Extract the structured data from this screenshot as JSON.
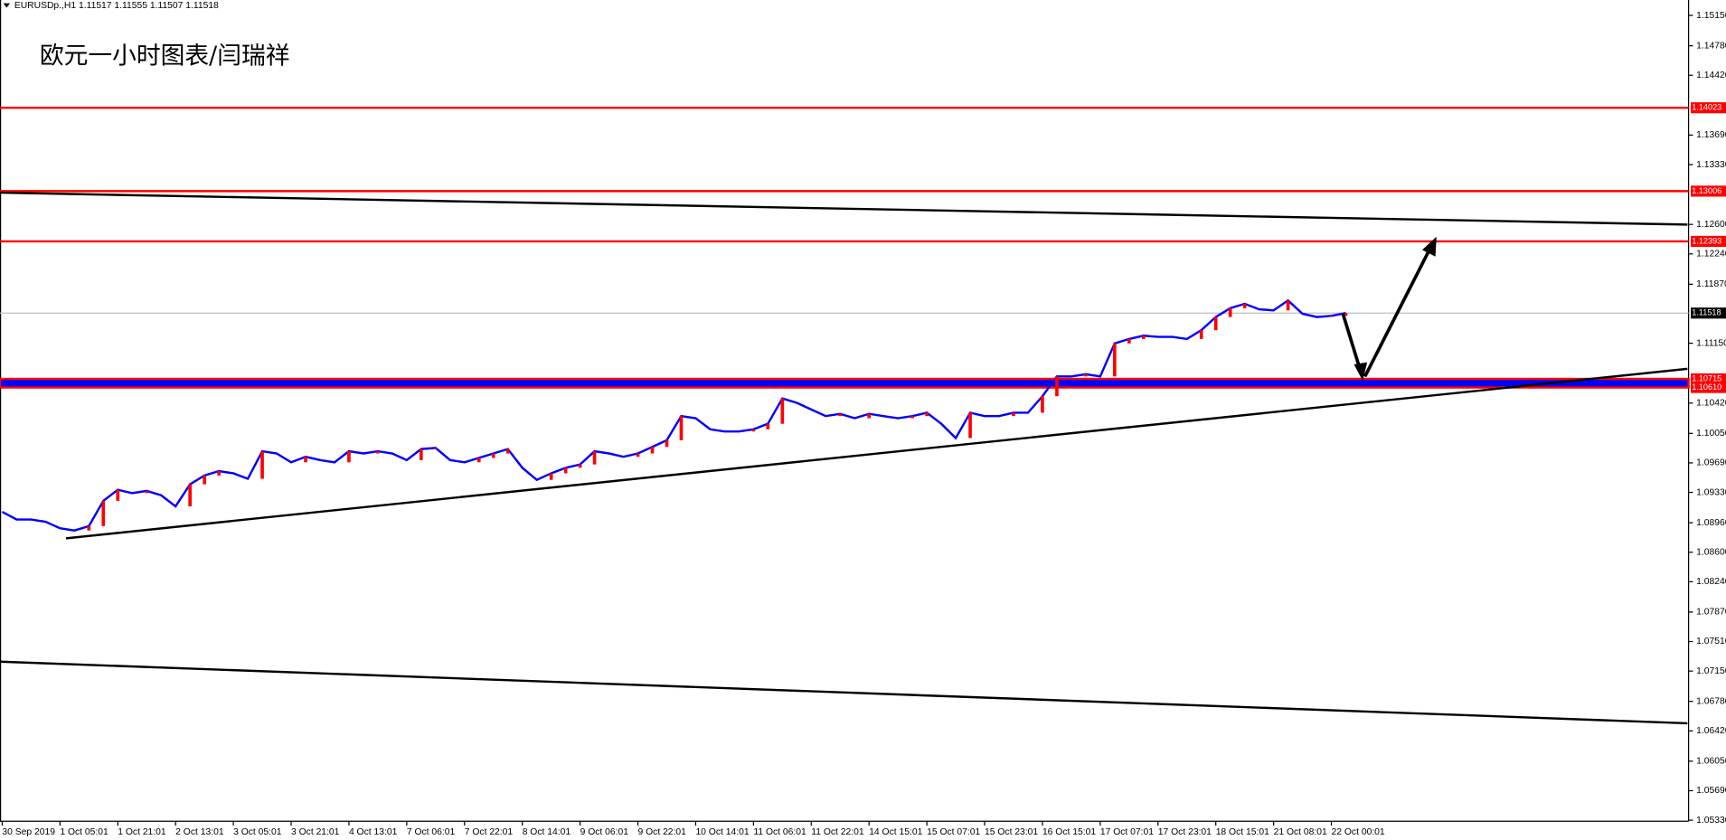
{
  "header": "EURUSDp.,H1  1.11517 1.11555 1.11507 1.11518",
  "chart_data": {
    "type": "line",
    "title": "欧元一小时图表/闫瑞祥",
    "categories": [
      "30 Sep 2019",
      null,
      null,
      null,
      "1 Oct 05:01",
      null,
      null,
      null,
      "1 Oct 21:01",
      null,
      null,
      null,
      "2 Oct 13:01",
      null,
      null,
      null,
      "3 Oct 05:01",
      null,
      null,
      null,
      "3 Oct 21:01",
      null,
      null,
      null,
      "4 Oct 13:01",
      null,
      null,
      null,
      "7 Oct 06:01",
      null,
      null,
      null,
      "7 Oct 22:01",
      null,
      null,
      null,
      "8 Oct 14:01",
      null,
      null,
      null,
      "9 Oct 06:01",
      null,
      null,
      null,
      "9 Oct 22:01",
      null,
      null,
      null,
      "10 Oct 14:01",
      null,
      null,
      null,
      "11 Oct 06:01",
      null,
      null,
      null,
      "11 Oct 22:01",
      null,
      null,
      null,
      "14 Oct 15:01",
      null,
      null,
      null,
      "15 Oct 07:01",
      null,
      null,
      null,
      "15 Oct 23:01",
      null,
      null,
      null,
      "16 Oct 15:01",
      null,
      null,
      null,
      "17 Oct 07:01",
      null,
      null,
      null,
      "17 Oct 23:01",
      null,
      null,
      null,
      "18 Oct 15:01",
      null,
      null,
      null,
      "21 Oct 08:01",
      null,
      null,
      null,
      "22 Oct 00:01",
      null
    ],
    "values": [
      1.09093,
      1.08999,
      1.08999,
      1.08972,
      1.08892,
      1.08865,
      1.08918,
      1.09227,
      1.09362,
      1.09321,
      1.09348,
      1.09295,
      1.0916,
      1.09429,
      1.09536,
      1.0959,
      1.09563,
      1.09496,
      1.09832,
      1.09805,
      1.09697,
      1.09765,
      1.09724,
      1.09697,
      1.09832,
      1.09805,
      1.09832,
      1.09805,
      1.09724,
      1.09859,
      1.09872,
      1.09724,
      1.09697,
      1.09751,
      1.09805,
      1.09859,
      1.0963,
      1.09483,
      1.09563,
      1.0963,
      1.09671,
      1.09832,
      1.09805,
      1.09765,
      1.09805,
      1.09885,
      1.09966,
      1.10261,
      1.10235,
      1.101,
      1.10073,
      1.10073,
      1.101,
      1.10167,
      1.10476,
      1.10423,
      1.10342,
      1.10261,
      1.10288,
      1.10235,
      1.10288,
      1.10261,
      1.10235,
      1.10261,
      1.10302,
      1.10167,
      1.09993,
      1.10302,
      1.10261,
      1.10261,
      1.10302,
      1.10302,
      1.10503,
      1.10745,
      1.10745,
      1.10772,
      1.10745,
      1.11148,
      1.11202,
      1.11242,
      1.11228,
      1.11228,
      1.11202,
      1.11309,
      1.1147,
      1.11578,
      1.11631,
      1.11564,
      1.11551,
      1.11672,
      1.1151,
      1.1147,
      1.11484,
      1.11518
    ],
    "color": "#0000ff",
    "up_color": "#ff0000",
    "ylim": [
      1.05317,
      1.15338
    ],
    "yticks": [
      {
        "value": 1.1515,
        "label": "1.15150"
      },
      {
        "value": 1.1478,
        "label": "1.14780"
      },
      {
        "value": 1.1442,
        "label": "1.14420"
      },
      {
        "value": 1.1369,
        "label": "1.13690"
      },
      {
        "value": 1.1333,
        "label": "1.13330"
      },
      {
        "value": 1.126,
        "label": "1.12600"
      },
      {
        "value": 1.1224,
        "label": "1.12240"
      },
      {
        "value": 1.1187,
        "label": "1.11870"
      },
      {
        "value": 1.1115,
        "label": "1.11150"
      },
      {
        "value": 1.1042,
        "label": "1.10420"
      },
      {
        "value": 1.1005,
        "label": "1.10050"
      },
      {
        "value": 1.0969,
        "label": "1.09690"
      },
      {
        "value": 1.0933,
        "label": "1.09330"
      },
      {
        "value": 1.0896,
        "label": "1.08960"
      },
      {
        "value": 1.086,
        "label": "1.08600"
      },
      {
        "value": 1.0824,
        "label": "1.08240"
      },
      {
        "value": 1.0787,
        "label": "1.07870"
      },
      {
        "value": 1.0751,
        "label": "1.07510"
      },
      {
        "value": 1.0715,
        "label": "1.07150"
      },
      {
        "value": 1.0678,
        "label": "1.06780"
      },
      {
        "value": 1.0642,
        "label": "1.06420"
      },
      {
        "value": 1.0605,
        "label": "1.06050"
      },
      {
        "value": 1.0569,
        "label": "1.05690"
      },
      {
        "value": 1.0533,
        "label": "1.05330"
      }
    ],
    "grid": false,
    "levels": [
      1.14023,
      1.13006,
      1.12393
    ],
    "level_color": "#ff0000",
    "band": [
      1.10715,
      {
        "value": 1.1061,
        "label": "1.10610"
      }
    ],
    "band_color": "#0000ff",
    "last_price": 1.11518
  }
}
